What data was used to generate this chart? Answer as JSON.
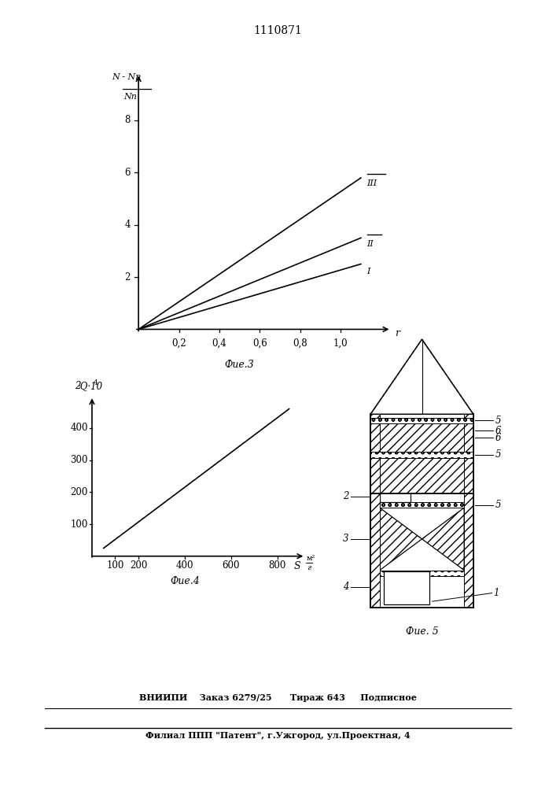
{
  "title": "1110871",
  "fig3_title": "Фие.3",
  "fig4_title": "Фие.4",
  "fig5_title": "Фие. 5",
  "fig3_lines": [
    {
      "x": [
        0,
        1.1
      ],
      "y": [
        0,
        2.5
      ],
      "label": "I"
    },
    {
      "x": [
        0,
        1.1
      ],
      "y": [
        0,
        3.5
      ],
      "label": "II"
    },
    {
      "x": [
        0,
        1.1
      ],
      "y": [
        0,
        5.8
      ],
      "label": "III"
    }
  ],
  "fig3_xticks": [
    0.2,
    0.4,
    0.6,
    0.8,
    1.0
  ],
  "fig3_yticks": [
    2,
    4,
    6,
    8
  ],
  "fig3_xlim": [
    0,
    1.25
  ],
  "fig3_ylim": [
    0,
    9.8
  ],
  "fig4_line": {
    "x": [
      50,
      850
    ],
    "y": [
      25,
      460
    ]
  },
  "fig4_xticks": [
    100,
    200,
    400,
    600,
    800
  ],
  "fig4_yticks": [
    100,
    200,
    300,
    400
  ],
  "fig4_xlim": [
    0,
    920
  ],
  "fig4_ylim": [
    0,
    500
  ],
  "footer1": "ВНИИПИ    Заказ 6279/25      Тираж 643     Подписное",
  "footer2": "Филиал ППП \"Патент\", г.Ужгород, ул.Проектная, 4",
  "bg_color": "#ffffff",
  "line_color": "#000000"
}
